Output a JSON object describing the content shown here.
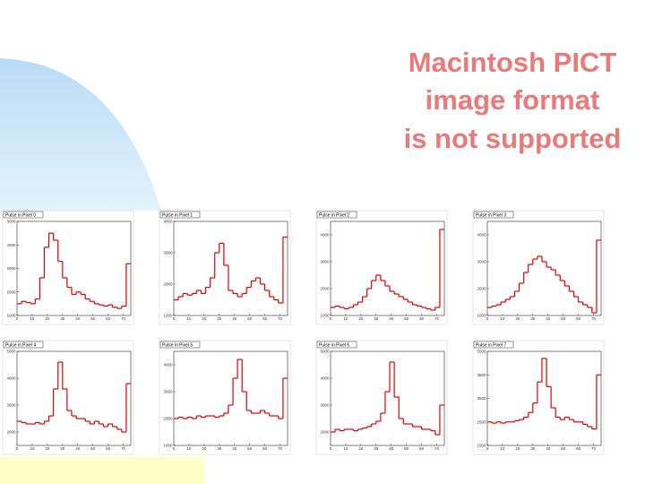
{
  "slide": {
    "placeholder_lines": [
      "Macintosh PICT",
      "image format",
      "is not supported"
    ]
  },
  "chart_data": [
    {
      "type": "histogram",
      "title": "Pulse in Pixel 0",
      "color": "#e00000",
      "bins": [
        0,
        3,
        6,
        9,
        12,
        15,
        18,
        21,
        24,
        27,
        30,
        33,
        36,
        39,
        42,
        45,
        48,
        51,
        54,
        57,
        60,
        63,
        66,
        69,
        72,
        75
      ],
      "values": [
        1500,
        1600,
        1550,
        1500,
        1700,
        2600,
        3900,
        4500,
        4200,
        3300,
        2600,
        2200,
        1900,
        2000,
        1900,
        1700,
        1600,
        1500,
        1450,
        1400,
        1450,
        1350,
        1300,
        1400,
        3200
      ],
      "xlim": [
        0,
        75
      ],
      "xticks": [
        0,
        10,
        20,
        30,
        40,
        50,
        60,
        70
      ],
      "ylim": [
        1000,
        5000
      ],
      "yticks": [
        1000,
        2000,
        3000,
        4000,
        5000
      ]
    },
    {
      "type": "histogram",
      "title": "Pulse in Pixel 1",
      "color": "#e00000",
      "bins": [
        0,
        3,
        6,
        9,
        12,
        15,
        18,
        21,
        24,
        27,
        30,
        33,
        36,
        39,
        42,
        45,
        48,
        51,
        54,
        57,
        60,
        63,
        66,
        69,
        72,
        75
      ],
      "values": [
        1500,
        1600,
        1700,
        1650,
        1700,
        1800,
        1700,
        1900,
        2200,
        3000,
        3300,
        2600,
        1800,
        1700,
        1600,
        1700,
        1900,
        2100,
        2200,
        2000,
        1800,
        1600,
        1500,
        1400,
        3500
      ],
      "xlim": [
        0,
        75
      ],
      "xticks": [
        0,
        10,
        20,
        30,
        40,
        50,
        60,
        70
      ],
      "ylim": [
        1000,
        4000
      ],
      "yticks": [
        1000,
        2000,
        3000,
        4000
      ]
    },
    {
      "type": "histogram",
      "title": "Pulse in Pixel 2",
      "color": "#e00000",
      "bins": [
        0,
        3,
        6,
        9,
        12,
        15,
        18,
        21,
        24,
        27,
        30,
        33,
        36,
        39,
        42,
        45,
        48,
        51,
        54,
        57,
        60,
        63,
        66,
        69,
        72,
        75
      ],
      "values": [
        1300,
        1350,
        1300,
        1250,
        1300,
        1400,
        1500,
        1700,
        2000,
        2300,
        2500,
        2300,
        2100,
        1900,
        1800,
        1700,
        1600,
        1500,
        1400,
        1350,
        1300,
        1250,
        1200,
        1300,
        4200
      ],
      "xlim": [
        0,
        75
      ],
      "xticks": [
        0,
        10,
        20,
        30,
        40,
        50,
        60,
        70
      ],
      "ylim": [
        1000,
        4500
      ],
      "yticks": [
        1000,
        2000,
        3000,
        4000
      ]
    },
    {
      "type": "histogram",
      "title": "Pulse in Pixel 3",
      "color": "#e00000",
      "bins": [
        0,
        3,
        6,
        9,
        12,
        15,
        18,
        21,
        24,
        27,
        30,
        33,
        36,
        39,
        42,
        45,
        48,
        51,
        54,
        57,
        60,
        63,
        66,
        69,
        72,
        75
      ],
      "values": [
        1300,
        1350,
        1400,
        1500,
        1600,
        1700,
        1900,
        2200,
        2600,
        2900,
        3100,
        3200,
        3000,
        2800,
        2700,
        2500,
        2300,
        2100,
        1900,
        1700,
        1500,
        1400,
        1300,
        1100,
        3800
      ],
      "xlim": [
        0,
        75
      ],
      "xticks": [
        0,
        10,
        20,
        30,
        40,
        50,
        60,
        70
      ],
      "ylim": [
        1000,
        4500
      ],
      "yticks": [
        1000,
        2000,
        3000,
        4000
      ]
    },
    {
      "type": "histogram",
      "title": "Pulse in Pixel 4",
      "color": "#e00000",
      "bins": [
        0,
        3,
        6,
        9,
        12,
        15,
        18,
        21,
        24,
        27,
        30,
        33,
        36,
        39,
        42,
        45,
        48,
        51,
        54,
        57,
        60,
        63,
        66,
        69,
        72,
        75
      ],
      "values": [
        2400,
        2350,
        2300,
        2300,
        2350,
        2300,
        2400,
        2600,
        3600,
        4600,
        3600,
        2800,
        2600,
        2500,
        2500,
        2400,
        2300,
        2400,
        2300,
        2200,
        2300,
        2200,
        2100,
        2000,
        3800
      ],
      "xlim": [
        0,
        75
      ],
      "xticks": [
        0,
        10,
        20,
        30,
        40,
        50,
        60,
        70
      ],
      "ylim": [
        1500,
        5000
      ],
      "yticks": [
        2000,
        3000,
        4000,
        5000
      ]
    },
    {
      "type": "histogram",
      "title": "Pulse in Pixel 5",
      "color": "#e00000",
      "bins": [
        0,
        3,
        6,
        9,
        12,
        15,
        18,
        21,
        24,
        27,
        30,
        33,
        36,
        39,
        42,
        45,
        48,
        51,
        54,
        57,
        60,
        63,
        66,
        69,
        72,
        75
      ],
      "values": [
        2000,
        2050,
        2000,
        2050,
        2000,
        2100,
        2050,
        2100,
        2100,
        2050,
        2100,
        2200,
        2500,
        3500,
        4200,
        3000,
        2300,
        2200,
        2200,
        2300,
        2200,
        2100,
        2100,
        2000,
        3500
      ],
      "xlim": [
        0,
        75
      ],
      "xticks": [
        0,
        10,
        20,
        30,
        40,
        50,
        60,
        70
      ],
      "ylim": [
        1000,
        4500
      ],
      "yticks": [
        1000,
        2000,
        3000,
        4000
      ]
    },
    {
      "type": "histogram",
      "title": "Pulse in Pixel 6",
      "color": "#e00000",
      "bins": [
        0,
        3,
        6,
        9,
        12,
        15,
        18,
        21,
        24,
        27,
        30,
        33,
        36,
        39,
        42,
        45,
        48,
        51,
        54,
        57,
        60,
        63,
        66,
        69,
        72,
        75
      ],
      "values": [
        2000,
        2100,
        2050,
        2100,
        2100,
        2050,
        2100,
        2150,
        2200,
        2300,
        2400,
        2700,
        3500,
        4600,
        3300,
        2500,
        2300,
        2300,
        2200,
        2200,
        2100,
        2100,
        2050,
        1900,
        3000
      ],
      "xlim": [
        0,
        75
      ],
      "xticks": [
        0,
        10,
        20,
        30,
        40,
        50,
        60,
        70
      ],
      "ylim": [
        1500,
        5000
      ],
      "yticks": [
        2000,
        3000,
        4000,
        5000
      ]
    },
    {
      "type": "histogram",
      "title": "Pulse in Pixel 7",
      "color": "#e00000",
      "bins": [
        0,
        3,
        6,
        9,
        12,
        15,
        18,
        21,
        24,
        27,
        30,
        33,
        36,
        39,
        42,
        45,
        48,
        51,
        54,
        57,
        60,
        63,
        66,
        69,
        72,
        75
      ],
      "values": [
        2500,
        2450,
        2500,
        2450,
        2500,
        2500,
        2550,
        2600,
        2700,
        2900,
        3300,
        4200,
        5200,
        4000,
        3100,
        2700,
        2600,
        2700,
        2600,
        2500,
        2500,
        2400,
        2300,
        2200,
        4500
      ],
      "xlim": [
        0,
        75
      ],
      "xticks": [
        0,
        10,
        20,
        30,
        40,
        50,
        60,
        70
      ],
      "ylim": [
        1500,
        5500
      ],
      "yticks": [
        1500,
        2500,
        3500,
        4500,
        5500
      ]
    }
  ]
}
